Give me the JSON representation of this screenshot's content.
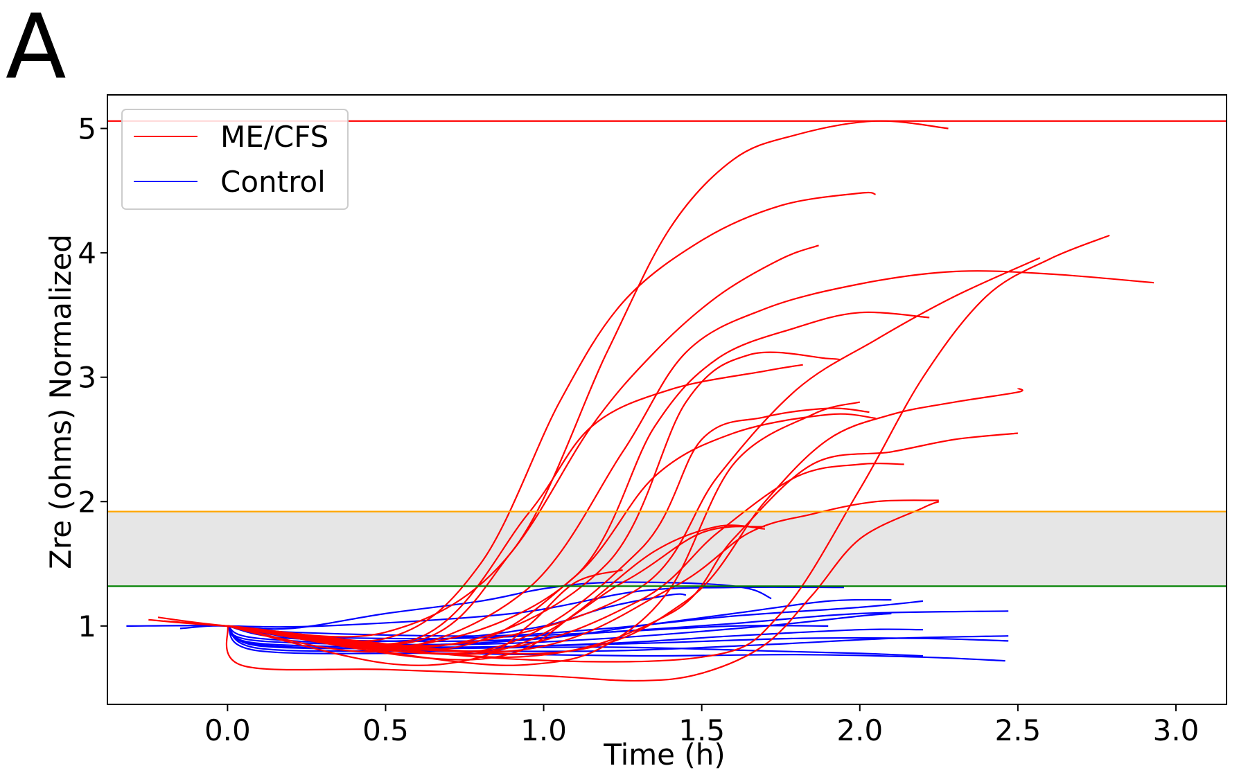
{
  "panel_label": "A",
  "chart_data": {
    "type": "line",
    "xlabel": "Time (h)",
    "ylabel": "Zre (ohms) Normalized",
    "xlim": [
      -0.38,
      3.16
    ],
    "ylim": [
      0.37,
      5.27
    ],
    "xticks": [
      {
        "value": 0.0,
        "label": "0.0"
      },
      {
        "value": 0.5,
        "label": "0.5"
      },
      {
        "value": 1.0,
        "label": "1.0"
      },
      {
        "value": 1.5,
        "label": "1.5"
      },
      {
        "value": 2.0,
        "label": "2.0"
      },
      {
        "value": 2.5,
        "label": "2.5"
      },
      {
        "value": 3.0,
        "label": "3.0"
      }
    ],
    "yticks": [
      {
        "value": 1,
        "label": "1"
      },
      {
        "value": 2,
        "label": "2"
      },
      {
        "value": 3,
        "label": "3"
      },
      {
        "value": 4,
        "label": "4"
      },
      {
        "value": 5,
        "label": "5"
      }
    ],
    "grid": false,
    "legend": {
      "placement": "top-left",
      "entries": [
        {
          "label": "ME/CFS",
          "color": "#ff0000"
        },
        {
          "label": "Control",
          "color": "#0000ff"
        }
      ]
    },
    "reference_lines": [
      {
        "y": 5.06,
        "color": "#ff0000"
      },
      {
        "y": 1.92,
        "color": "#ffa500"
      },
      {
        "y": 1.32,
        "color": "#008000"
      }
    ],
    "shaded_band": {
      "y0": 1.32,
      "y1": 1.92,
      "color": "#e6e6e6"
    },
    "series": [
      {
        "group": "ME/CFS",
        "color": "#ff0000",
        "points": [
          [
            -0.25,
            1.05
          ],
          [
            0,
            1.0
          ],
          [
            0.5,
            0.95
          ],
          [
            0.9,
            1.6
          ],
          [
            1.2,
            3.2
          ],
          [
            1.4,
            4.2
          ],
          [
            1.6,
            4.75
          ],
          [
            1.8,
            4.95
          ],
          [
            2.05,
            5.06
          ],
          [
            2.28,
            5.0
          ]
        ]
      },
      {
        "group": "ME/CFS",
        "color": "#ff0000",
        "points": [
          [
            -0.22,
            1.07
          ],
          [
            0,
            1.0
          ],
          [
            0.5,
            0.9
          ],
          [
            0.8,
            1.5
          ],
          [
            1.05,
            2.8
          ],
          [
            1.25,
            3.6
          ],
          [
            1.5,
            4.1
          ],
          [
            1.75,
            4.38
          ],
          [
            2.0,
            4.48
          ],
          [
            2.05,
            4.47
          ]
        ]
      },
      {
        "group": "ME/CFS",
        "color": "#ff0000",
        "points": [
          [
            -0.2,
            1.04
          ],
          [
            0,
            1.0
          ],
          [
            0.6,
            0.88
          ],
          [
            0.9,
            1.6
          ],
          [
            1.15,
            2.6
          ],
          [
            1.35,
            3.2
          ],
          [
            1.55,
            3.65
          ],
          [
            1.75,
            3.95
          ],
          [
            1.87,
            4.06
          ]
        ]
      },
      {
        "group": "ME/CFS",
        "color": "#ff0000",
        "points": [
          [
            0,
            1.0
          ],
          [
            0.5,
            0.8
          ],
          [
            0.95,
            1.3
          ],
          [
            1.25,
            2.4
          ],
          [
            1.45,
            3.2
          ],
          [
            1.7,
            3.55
          ],
          [
            2.0,
            3.75
          ],
          [
            2.3,
            3.85
          ],
          [
            2.6,
            3.83
          ],
          [
            2.93,
            3.76
          ]
        ]
      },
      {
        "group": "ME/CFS",
        "color": "#ff0000",
        "points": [
          [
            0,
            1.0
          ],
          [
            0.7,
            0.85
          ],
          [
            1.3,
            1.3
          ],
          [
            1.55,
            2.2
          ],
          [
            1.8,
            2.9
          ],
          [
            2.05,
            3.3
          ],
          [
            2.3,
            3.65
          ],
          [
            2.57,
            3.96
          ]
        ]
      },
      {
        "group": "ME/CFS",
        "color": "#ff0000",
        "points": [
          [
            0,
            1.0
          ],
          [
            0.8,
            0.75
          ],
          [
            1.5,
            0.75
          ],
          [
            1.75,
            1.1
          ],
          [
            2.0,
            2.1
          ],
          [
            2.2,
            3.0
          ],
          [
            2.4,
            3.65
          ],
          [
            2.6,
            3.95
          ],
          [
            2.79,
            4.14
          ]
        ]
      },
      {
        "group": "ME/CFS",
        "color": "#ff0000",
        "points": [
          [
            0,
            1.0
          ],
          [
            0.6,
            0.85
          ],
          [
            1.1,
            1.4
          ],
          [
            1.35,
            2.6
          ],
          [
            1.55,
            3.15
          ],
          [
            1.8,
            3.4
          ],
          [
            2.0,
            3.52
          ],
          [
            2.22,
            3.48
          ]
        ]
      },
      {
        "group": "ME/CFS",
        "color": "#ff0000",
        "points": [
          [
            0,
            1.0
          ],
          [
            0.7,
            0.85
          ],
          [
            1.2,
            1.5
          ],
          [
            1.45,
            2.8
          ],
          [
            1.65,
            3.18
          ],
          [
            1.9,
            3.15
          ],
          [
            1.94,
            3.14
          ]
        ]
      },
      {
        "group": "ME/CFS",
        "color": "#ff0000",
        "points": [
          [
            0,
            1.0
          ],
          [
            0.6,
            0.9
          ],
          [
            0.95,
            1.9
          ],
          [
            1.15,
            2.6
          ],
          [
            1.4,
            2.9
          ],
          [
            1.7,
            3.05
          ],
          [
            1.82,
            3.1
          ]
        ]
      },
      {
        "group": "ME/CFS",
        "color": "#ff0000",
        "points": [
          [
            0,
            1.0
          ],
          [
            0.8,
            0.8
          ],
          [
            1.3,
            1.6
          ],
          [
            1.5,
            2.5
          ],
          [
            1.7,
            2.68
          ],
          [
            1.9,
            2.75
          ],
          [
            2.03,
            2.72
          ]
        ]
      },
      {
        "group": "ME/CFS",
        "color": "#ff0000",
        "points": [
          [
            0,
            1.0
          ],
          [
            0.7,
            0.82
          ],
          [
            1.1,
            1.4
          ],
          [
            1.35,
            2.2
          ],
          [
            1.6,
            2.55
          ],
          [
            1.9,
            2.7
          ],
          [
            2.05,
            2.67
          ]
        ]
      },
      {
        "group": "ME/CFS",
        "color": "#ff0000",
        "points": [
          [
            0,
            1.0
          ],
          [
            1.0,
            0.78
          ],
          [
            1.45,
            1.2
          ],
          [
            1.7,
            2.0
          ],
          [
            1.9,
            2.5
          ],
          [
            2.1,
            2.7
          ],
          [
            2.3,
            2.8
          ],
          [
            2.5,
            2.88
          ],
          [
            2.5,
            2.91
          ]
        ]
      },
      {
        "group": "ME/CFS",
        "color": "#ff0000",
        "points": [
          [
            0,
            1.0
          ],
          [
            0.9,
            0.75
          ],
          [
            1.4,
            1.1
          ],
          [
            1.6,
            1.7
          ],
          [
            1.85,
            2.3
          ],
          [
            2.1,
            2.4
          ],
          [
            2.3,
            2.5
          ],
          [
            2.5,
            2.55
          ]
        ]
      },
      {
        "group": "ME/CFS",
        "color": "#ff0000",
        "points": [
          [
            0,
            1.0
          ],
          [
            0.8,
            0.8
          ],
          [
            1.3,
            1.2
          ],
          [
            1.55,
            1.75
          ],
          [
            1.8,
            2.2
          ],
          [
            2.0,
            2.3
          ],
          [
            2.14,
            2.3
          ]
        ]
      },
      {
        "group": "ME/CFS",
        "color": "#ff0000",
        "points": [
          [
            0,
            1.0
          ],
          [
            0.9,
            0.8
          ],
          [
            1.4,
            1.3
          ],
          [
            1.65,
            1.75
          ],
          [
            1.85,
            1.9
          ],
          [
            2.05,
            2.0
          ],
          [
            2.25,
            2.01
          ]
        ]
      },
      {
        "group": "ME/CFS",
        "color": "#ff0000",
        "points": [
          [
            0,
            1.0
          ],
          [
            0.8,
            0.78
          ],
          [
            1.25,
            1.35
          ],
          [
            1.5,
            1.75
          ],
          [
            1.7,
            1.8
          ]
        ]
      },
      {
        "group": "ME/CFS",
        "color": "#ff0000",
        "points": [
          [
            0,
            1.0
          ],
          [
            0.05,
            0.68
          ],
          [
            0.5,
            0.65
          ],
          [
            1.0,
            0.6
          ],
          [
            1.3,
            0.56
          ],
          [
            1.5,
            0.62
          ],
          [
            1.7,
            0.85
          ],
          [
            1.85,
            1.25
          ],
          [
            2.0,
            1.7
          ],
          [
            2.2,
            1.95
          ],
          [
            2.25,
            2.0
          ]
        ]
      },
      {
        "group": "ME/CFS",
        "color": "#ff0000",
        "points": [
          [
            0,
            1.0
          ],
          [
            0.7,
            0.72
          ],
          [
            1.0,
            0.7
          ],
          [
            1.2,
            0.85
          ],
          [
            1.4,
            1.3
          ],
          [
            1.6,
            2.3
          ],
          [
            1.85,
            2.7
          ],
          [
            2.0,
            2.8
          ]
        ]
      },
      {
        "group": "ME/CFS",
        "color": "#ff0000",
        "points": [
          [
            0,
            1.0
          ],
          [
            0.6,
            0.75
          ],
          [
            0.9,
            0.78
          ],
          [
            1.1,
            1.1
          ],
          [
            1.35,
            1.6
          ],
          [
            1.55,
            1.8
          ],
          [
            1.7,
            1.78
          ]
        ]
      },
      {
        "group": "ME/CFS",
        "color": "#ff0000",
        "points": [
          [
            0,
            1.0
          ],
          [
            0.5,
            0.7
          ],
          [
            0.8,
            0.75
          ],
          [
            0.95,
            1.0
          ],
          [
            1.1,
            1.35
          ],
          [
            1.25,
            1.45
          ]
        ]
      },
      {
        "group": "Control",
        "color": "#0000ff",
        "points": [
          [
            -0.32,
            1.0
          ],
          [
            0,
            1.0
          ],
          [
            0.2,
            0.95
          ],
          [
            0.8,
            0.92
          ],
          [
            1.2,
            0.98
          ],
          [
            1.6,
            1.08
          ],
          [
            2.0,
            1.15
          ],
          [
            2.2,
            1.2
          ]
        ]
      },
      {
        "group": "Control",
        "color": "#0000ff",
        "points": [
          [
            0,
            1.0
          ],
          [
            0.2,
            0.9
          ],
          [
            0.8,
            0.88
          ],
          [
            1.2,
            0.95
          ],
          [
            1.6,
            1.02
          ],
          [
            2.0,
            1.1
          ],
          [
            2.47,
            1.12
          ]
        ]
      },
      {
        "group": "Control",
        "color": "#0000ff",
        "points": [
          [
            0,
            1.0
          ],
          [
            0.2,
            0.98
          ],
          [
            0.5,
            1.1
          ],
          [
            0.8,
            1.2
          ],
          [
            1.0,
            1.3
          ],
          [
            1.2,
            1.35
          ],
          [
            1.5,
            1.34
          ],
          [
            1.65,
            1.3
          ],
          [
            1.72,
            1.22
          ]
        ]
      },
      {
        "group": "Control",
        "color": "#0000ff",
        "points": [
          [
            0,
            1.0
          ],
          [
            0.3,
            0.88
          ],
          [
            0.7,
            0.9
          ],
          [
            1.0,
            1.0
          ],
          [
            1.2,
            1.15
          ],
          [
            1.4,
            1.25
          ],
          [
            1.45,
            1.25
          ]
        ]
      },
      {
        "group": "Control",
        "color": "#0000ff",
        "points": [
          [
            0,
            1.0
          ],
          [
            0.1,
            0.9
          ],
          [
            0.6,
            0.85
          ],
          [
            1.0,
            0.9
          ],
          [
            1.3,
            1.0
          ],
          [
            1.6,
            1.1
          ],
          [
            1.9,
            1.2
          ],
          [
            2.1,
            1.21
          ]
        ]
      },
      {
        "group": "Control",
        "color": "#0000ff",
        "points": [
          [
            0,
            1.0
          ],
          [
            0.1,
            0.82
          ],
          [
            0.6,
            0.8
          ],
          [
            1.2,
            0.8
          ],
          [
            1.7,
            0.85
          ],
          [
            2.1,
            0.9
          ],
          [
            2.47,
            0.92
          ]
        ]
      },
      {
        "group": "Control",
        "color": "#0000ff",
        "points": [
          [
            0,
            1.0
          ],
          [
            0.1,
            0.85
          ],
          [
            0.6,
            0.82
          ],
          [
            1.2,
            0.86
          ],
          [
            1.6,
            0.92
          ],
          [
            2.0,
            0.97
          ],
          [
            2.2,
            0.97
          ]
        ]
      },
      {
        "group": "Control",
        "color": "#0000ff",
        "points": [
          [
            0,
            1.0
          ],
          [
            0.1,
            0.8
          ],
          [
            0.7,
            0.78
          ],
          [
            1.3,
            0.76
          ],
          [
            1.8,
            0.77
          ],
          [
            2.2,
            0.75
          ],
          [
            2.46,
            0.72
          ]
        ]
      },
      {
        "group": "Control",
        "color": "#0000ff",
        "points": [
          [
            0,
            1.0
          ],
          [
            0.1,
            0.88
          ],
          [
            0.7,
            0.85
          ],
          [
            1.2,
            0.9
          ],
          [
            1.7,
            1.0
          ],
          [
            2.0,
            1.08
          ],
          [
            2.1,
            1.1
          ]
        ]
      },
      {
        "group": "Control",
        "color": "#0000ff",
        "points": [
          [
            0,
            1.0
          ],
          [
            0.1,
            0.86
          ],
          [
            0.7,
            0.83
          ],
          [
            1.3,
            0.86
          ],
          [
            1.8,
            0.9
          ],
          [
            2.2,
            0.9
          ],
          [
            2.47,
            0.88
          ]
        ]
      },
      {
        "group": "Control",
        "color": "#0000ff",
        "points": [
          [
            0,
            1.0
          ],
          [
            0.1,
            0.84
          ],
          [
            0.6,
            0.82
          ],
          [
            1.2,
            0.83
          ],
          [
            1.7,
            0.8
          ],
          [
            2.0,
            0.78
          ],
          [
            2.2,
            0.76
          ]
        ]
      },
      {
        "group": "Control",
        "color": "#0000ff",
        "points": [
          [
            -0.15,
            0.98
          ],
          [
            0,
            1.0
          ],
          [
            0.2,
            0.92
          ],
          [
            0.7,
            0.9
          ],
          [
            1.2,
            0.95
          ],
          [
            1.6,
            1.0
          ],
          [
            1.9,
            1.0
          ]
        ]
      },
      {
        "group": "Control",
        "color": "#0000ff",
        "points": [
          [
            0,
            1.0
          ],
          [
            0.3,
            1.0
          ],
          [
            0.9,
            1.1
          ],
          [
            1.3,
            1.28
          ],
          [
            1.6,
            1.31
          ],
          [
            1.95,
            1.31
          ]
        ]
      }
    ]
  }
}
